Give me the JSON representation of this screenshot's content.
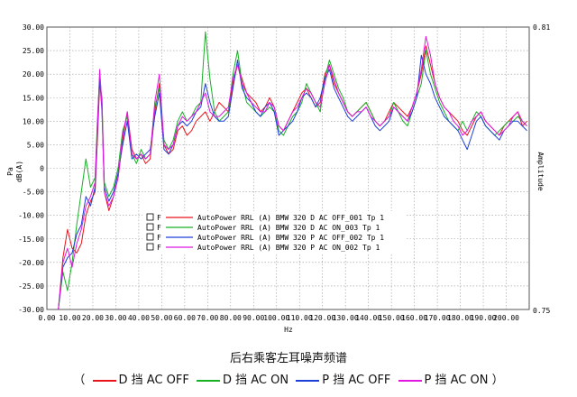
{
  "chart_data": {
    "type": "line",
    "ylabel_left": [
      "Pa",
      "dB(A)"
    ],
    "ylabel_right": "Amplitude",
    "xlabel": "Hz",
    "xlim": [
      0,
      210
    ],
    "ylim": [
      -30,
      30
    ],
    "right_tick_top": "0.81",
    "right_tick_bottom": "0.75",
    "x_ticks": [
      "0.00",
      "10.00",
      "20.00",
      "30.00",
      "40.00",
      "50.00",
      "60.00",
      "70.00",
      "80.00",
      "90.00",
      "100.00",
      "110.00",
      "120.00",
      "130.00",
      "140.00",
      "150.00",
      "160.00",
      "170.00",
      "180.00",
      "190.00",
      "200.00"
    ],
    "y_ticks": [
      "30.00",
      "25.00",
      "20.00",
      "15.00",
      "10.00",
      "5.00",
      "0",
      "-5.00",
      "-10.00",
      "-15.00",
      "-20.00",
      "-25.00",
      "-30.00"
    ],
    "grid": true,
    "legend_position": "lower-left",
    "legend_marker": "F",
    "title": "后右乘客左耳噪声频谱",
    "series": [
      {
        "name": "AutoPower RRL (A) BMW 320 D AC OFF_001 Tp 1",
        "color": "#e8141c",
        "x": [
          5,
          7,
          9,
          11,
          13,
          15,
          17,
          19,
          21,
          22,
          23,
          24,
          25,
          27,
          29,
          31,
          33,
          35,
          37,
          39,
          41,
          43,
          45,
          47,
          49,
          51,
          53,
          55,
          57,
          59,
          61,
          63,
          65,
          67,
          69,
          71,
          73,
          75,
          77,
          79,
          81,
          83,
          85,
          87,
          89,
          91,
          93,
          95,
          97,
          99,
          101,
          103,
          105,
          107,
          109,
          111,
          113,
          115,
          117,
          119,
          121,
          123,
          125,
          127,
          129,
          131,
          133,
          135,
          137,
          139,
          141,
          143,
          145,
          147,
          149,
          151,
          153,
          155,
          157,
          159,
          161,
          163,
          165,
          167,
          169,
          171,
          173,
          175,
          177,
          179,
          181,
          183,
          185,
          187,
          189,
          191,
          193,
          195,
          197,
          199,
          201,
          203,
          205,
          207,
          209
        ],
        "y": [
          -30,
          -19,
          -13,
          -17,
          -18,
          -16,
          -10,
          -7,
          -5,
          6,
          18,
          15,
          -5,
          -9,
          -6,
          -2,
          6,
          12,
          4,
          2,
          3,
          1,
          2,
          12,
          18,
          5,
          3,
          4,
          8,
          9,
          7,
          8,
          10,
          11,
          12,
          10,
          12,
          14,
          13,
          12,
          18,
          22,
          19,
          16,
          15,
          14,
          12,
          13,
          15,
          13,
          9,
          8,
          10,
          12,
          14,
          16,
          17,
          15,
          13,
          14,
          20,
          22,
          18,
          16,
          14,
          12,
          11,
          12,
          13,
          14,
          12,
          10,
          9,
          10,
          12,
          14,
          13,
          12,
          11,
          13,
          16,
          20,
          26,
          22,
          18,
          15,
          13,
          12,
          11,
          10,
          8,
          7,
          9,
          11,
          12,
          10,
          9,
          8,
          7,
          9,
          10,
          11,
          12,
          9,
          10
        ]
      },
      {
        "name": "AutoPower RRL (A) BMW 320 D AC ON_003 Tp 1",
        "color": "#18b025",
        "x": [
          5,
          7,
          9,
          11,
          13,
          15,
          17,
          19,
          21,
          22,
          23,
          24,
          25,
          27,
          29,
          31,
          33,
          35,
          37,
          39,
          41,
          43,
          45,
          47,
          49,
          51,
          53,
          55,
          57,
          59,
          61,
          63,
          65,
          67,
          69,
          71,
          73,
          75,
          77,
          79,
          81,
          83,
          85,
          87,
          89,
          91,
          93,
          95,
          97,
          99,
          101,
          103,
          105,
          107,
          109,
          111,
          113,
          115,
          117,
          119,
          121,
          123,
          125,
          127,
          129,
          131,
          133,
          135,
          137,
          139,
          141,
          143,
          145,
          147,
          149,
          151,
          153,
          155,
          157,
          159,
          161,
          163,
          165,
          167,
          169,
          171,
          173,
          175,
          177,
          179,
          181,
          183,
          185,
          187,
          189,
          191,
          193,
          195,
          197,
          199,
          201,
          203,
          205,
          207,
          209
        ],
        "y": [
          -30,
          -22,
          -26,
          -20,
          -12,
          -5,
          2,
          -4,
          -2,
          10,
          20,
          14,
          -3,
          -6,
          -4,
          0,
          8,
          11,
          3,
          1,
          4,
          2,
          3,
          13,
          17,
          6,
          4,
          6,
          10,
          12,
          10,
          11,
          13,
          14,
          29,
          19,
          12,
          10,
          11,
          12,
          20,
          25,
          18,
          14,
          13,
          12,
          11,
          12,
          13,
          12,
          8,
          7,
          9,
          11,
          12,
          14,
          18,
          16,
          14,
          12,
          19,
          23,
          20,
          17,
          15,
          12,
          11,
          12,
          13,
          14,
          12,
          10,
          9,
          10,
          11,
          14,
          12,
          10,
          9,
          12,
          15,
          18,
          25,
          20,
          17,
          14,
          12,
          10,
          9,
          8,
          10,
          8,
          10,
          12,
          11,
          9,
          8,
          7,
          8,
          9,
          10,
          10,
          11,
          10,
          9
        ]
      },
      {
        "name": "AutoPower RRL (A) BMW 320 P AC OFF_002 Tp 1",
        "color": "#1c3fd8",
        "x": [
          5,
          7,
          9,
          11,
          13,
          15,
          17,
          19,
          21,
          22,
          23,
          24,
          25,
          27,
          29,
          31,
          33,
          35,
          37,
          39,
          41,
          43,
          45,
          47,
          49,
          51,
          53,
          55,
          57,
          59,
          61,
          63,
          65,
          67,
          69,
          71,
          73,
          75,
          77,
          79,
          81,
          83,
          85,
          87,
          89,
          91,
          93,
          95,
          97,
          99,
          101,
          103,
          105,
          107,
          109,
          111,
          113,
          115,
          117,
          119,
          121,
          123,
          125,
          127,
          129,
          131,
          133,
          135,
          137,
          139,
          141,
          143,
          145,
          147,
          149,
          151,
          153,
          155,
          157,
          159,
          161,
          163,
          165,
          167,
          169,
          171,
          173,
          175,
          177,
          179,
          181,
          183,
          185,
          187,
          189,
          191,
          193,
          195,
          197,
          199,
          201,
          203,
          205,
          207,
          209
        ],
        "y": [
          -30,
          -21,
          -19,
          -18,
          -14,
          -12,
          -6,
          -8,
          -4,
          8,
          19,
          12,
          -4,
          -7,
          -5,
          -1,
          5,
          10,
          2,
          3,
          2,
          3,
          4,
          11,
          16,
          4,
          3,
          5,
          9,
          10,
          9,
          10,
          12,
          13,
          18,
          14,
          11,
          10,
          10,
          11,
          17,
          23,
          17,
          15,
          14,
          12,
          11,
          13,
          14,
          12,
          7,
          8,
          9,
          10,
          12,
          15,
          16,
          15,
          13,
          15,
          19,
          21,
          17,
          15,
          13,
          11,
          10,
          11,
          12,
          13,
          11,
          9,
          8,
          9,
          10,
          13,
          12,
          11,
          10,
          12,
          15,
          24,
          20,
          18,
          15,
          13,
          11,
          10,
          9,
          8,
          6,
          4,
          7,
          10,
          11,
          9,
          8,
          7,
          6,
          8,
          9,
          10,
          10,
          9,
          8
        ]
      },
      {
        "name": "AutoPower RRL (A) BMW 320 P AC ON_002 Tp 1",
        "color": "#e018e0",
        "x": [
          5,
          7,
          9,
          11,
          13,
          15,
          17,
          19,
          21,
          22,
          23,
          24,
          25,
          27,
          29,
          31,
          33,
          35,
          37,
          39,
          41,
          43,
          45,
          47,
          49,
          51,
          53,
          55,
          57,
          59,
          61,
          63,
          65,
          67,
          69,
          71,
          73,
          75,
          77,
          79,
          81,
          83,
          85,
          87,
          89,
          91,
          93,
          95,
          97,
          99,
          101,
          103,
          105,
          107,
          109,
          111,
          113,
          115,
          117,
          119,
          121,
          123,
          125,
          127,
          129,
          131,
          133,
          135,
          137,
          139,
          141,
          143,
          145,
          147,
          149,
          151,
          153,
          155,
          157,
          159,
          161,
          163,
          165,
          167,
          169,
          171,
          173,
          175,
          177,
          179,
          181,
          183,
          185,
          187,
          189,
          191,
          193,
          195,
          197,
          199,
          201,
          203,
          205,
          207,
          209
        ],
        "y": [
          -30,
          -20,
          -17,
          -21,
          -16,
          -13,
          -8,
          -6,
          -3,
          9,
          21,
          13,
          -5,
          -8,
          -6,
          -2,
          7,
          12,
          3,
          2,
          3,
          2,
          3,
          14,
          20,
          5,
          4,
          5,
          9,
          11,
          10,
          11,
          12,
          14,
          16,
          12,
          11,
          11,
          12,
          13,
          19,
          22,
          18,
          16,
          14,
          13,
          12,
          12,
          14,
          13,
          9,
          8,
          10,
          12,
          13,
          15,
          17,
          16,
          14,
          13,
          18,
          22,
          19,
          16,
          14,
          12,
          11,
          12,
          12,
          13,
          11,
          10,
          9,
          10,
          11,
          13,
          12,
          11,
          10,
          13,
          16,
          21,
          28,
          24,
          18,
          15,
          13,
          12,
          10,
          9,
          7,
          8,
          10,
          11,
          12,
          10,
          9,
          8,
          7,
          8,
          9,
          11,
          12,
          10,
          9
        ]
      }
    ]
  },
  "subtitle": {
    "open": "（",
    "items": [
      "D 挡 AC OFF",
      "D 挡 AC ON",
      "P 挡 AC OFF",
      "P 挡 AC ON"
    ],
    "close": "）"
  }
}
